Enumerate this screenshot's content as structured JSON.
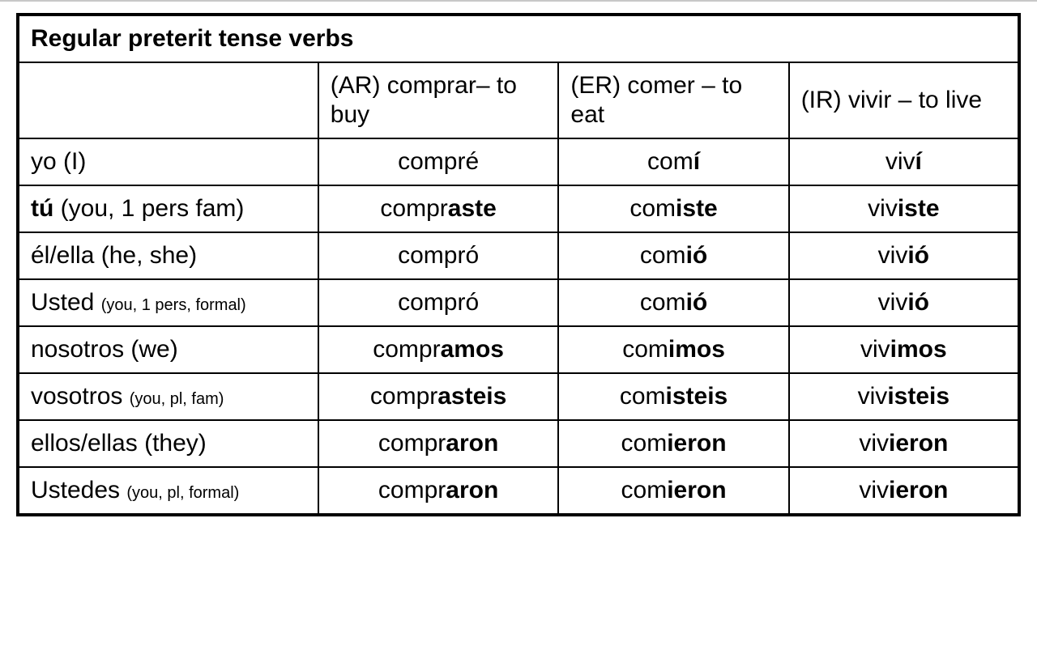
{
  "table": {
    "title": "Regular preterit tense verbs",
    "columns": {
      "ar": {
        "prefix": "(AR) ",
        "verb": "comprar",
        "dash": "– ",
        "gloss": "to buy"
      },
      "er": {
        "prefix": "(ER) ",
        "verb": "comer",
        "dash": " – ",
        "gloss": "to eat"
      },
      "ir": {
        "prefix": "(IR) ",
        "verb": "vivir",
        "dash": " – ",
        "gloss": "to live"
      }
    },
    "rows": [
      {
        "pronoun_main": "yo ",
        "pronoun_paren": "(I)",
        "small_paren": false,
        "bold_pronoun": false,
        "ar": {
          "stem": "compr",
          "end": "é",
          "bold_end": false
        },
        "er": {
          "stem": "com",
          "end": "í",
          "bold_end": true
        },
        "ir": {
          "stem": "viv",
          "mid": "",
          "end": "í",
          "bold_end": true
        }
      },
      {
        "pronoun_main": "tú ",
        "pronoun_paren": "(you, 1 pers fam)",
        "small_paren": false,
        "bold_pronoun": true,
        "ar": {
          "stem": "compr",
          "end": "aste",
          "bold_end": true
        },
        "er": {
          "stem": "com",
          "end": "iste",
          "bold_end": true
        },
        "ir": {
          "stem": "viv",
          "end": "iste",
          "bold_end": true
        }
      },
      {
        "pronoun_main": "él/ella ",
        "pronoun_paren": "(he, she)",
        "small_paren": false,
        "bold_pronoun": false,
        "ar": {
          "stem": "compr",
          "end": "ó",
          "bold_end": false
        },
        "er": {
          "stem": "com",
          "end": "ió",
          "bold_end": true
        },
        "ir": {
          "stem": "viv",
          "end": "ió",
          "bold_end": true
        }
      },
      {
        "pronoun_main": "Usted ",
        "pronoun_paren": "(you, 1 pers, formal)",
        "small_paren": true,
        "bold_pronoun": false,
        "ar": {
          "stem": "compr",
          "end": "ó",
          "bold_end": false
        },
        "er": {
          "stem": "com",
          "end": "ió",
          "bold_end": true
        },
        "ir": {
          "stem": "viv",
          "end": "ió",
          "bold_end": true
        }
      },
      {
        "pronoun_main": "nosotros ",
        "pronoun_paren": "(we)",
        "small_paren": false,
        "bold_pronoun": false,
        "ar": {
          "stem": "compr",
          "end": "amos",
          "bold_end": true
        },
        "er": {
          "stem": "com",
          "end": "imos",
          "bold_end": true
        },
        "ir": {
          "stem": "viv",
          "end": "imos",
          "bold_end": true
        }
      },
      {
        "pronoun_main": "vosotros ",
        "pronoun_paren": "(you, pl, fam)",
        "small_paren": true,
        "bold_pronoun": false,
        "ar": {
          "stem": "compr",
          "end": "asteis",
          "bold_end": true
        },
        "er": {
          "stem": "com",
          "end": "isteis",
          "bold_end": true
        },
        "ir": {
          "stem": "viv",
          "end": "isteis",
          "bold_end": true
        }
      },
      {
        "pronoun_main": "ellos/ellas ",
        "pronoun_paren": "(they)",
        "small_paren": false,
        "bold_pronoun": false,
        "ar": {
          "stem": "compr",
          "end": "aron",
          "bold_end": true
        },
        "er": {
          "stem": "com",
          "end": "ieron",
          "bold_end": true
        },
        "ir": {
          "stem": "viv",
          "end": "ieron",
          "bold_end": true
        }
      },
      {
        "pronoun_main": "Ustedes ",
        "pronoun_paren": "(you, pl, formal)",
        "small_paren": true,
        "bold_pronoun": false,
        "ar": {
          "stem": "compr",
          "end": "aron",
          "bold_end": true
        },
        "er": {
          "stem": "com",
          "end": "ieron",
          "bold_end": true
        },
        "ir": {
          "stem": "viv",
          "end": "ieron",
          "bold_end": true
        }
      }
    ]
  }
}
